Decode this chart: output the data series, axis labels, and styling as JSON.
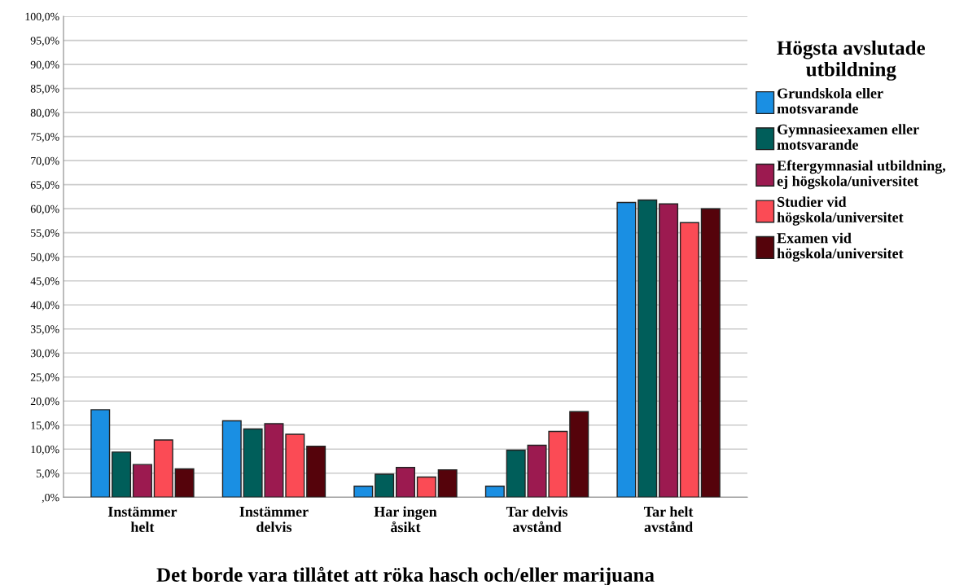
{
  "chart_data": {
    "type": "bar",
    "xlabel": "Det borde vara tillåtet att röka hasch och/eller marijuana",
    "legend_title": "Högsta avslutade\nutbildning",
    "categories": [
      "Instämmer\nhelt",
      "Instämmer\ndelvis",
      "Har ingen\nåsikt",
      "Tar delvis\navstånd",
      "Tar helt\navstånd"
    ],
    "series": [
      {
        "name": "Grundskola eller\nmotsvarande",
        "color": "#1a8fe3",
        "values": [
          18.2,
          15.9,
          2.3,
          2.3,
          61.3
        ]
      },
      {
        "name": "Gymnasieexamen eller\nmotsvarande",
        "color": "#005e5a",
        "values": [
          9.4,
          14.2,
          4.8,
          9.8,
          61.8
        ]
      },
      {
        "name": "Eftergymnasial utbildning,\nej högskola/universitet",
        "color": "#9c1a50",
        "values": [
          6.8,
          15.3,
          6.2,
          10.8,
          61.0
        ]
      },
      {
        "name": "Studier vid\nhögskola/universitet",
        "color": "#fb4b55",
        "values": [
          11.9,
          13.1,
          4.2,
          13.7,
          57.1
        ]
      },
      {
        "name": "Examen vid\nhögskola/universitet",
        "color": "#55030b",
        "values": [
          5.9,
          10.6,
          5.7,
          17.8,
          60.0
        ]
      }
    ],
    "ylim": [
      0,
      100
    ],
    "yticks": [
      {
        "value": 0,
        "label": ",0%"
      },
      {
        "value": 5,
        "label": "5,0%"
      },
      {
        "value": 10,
        "label": "10,0%"
      },
      {
        "value": 15,
        "label": "15,0%"
      },
      {
        "value": 20,
        "label": "20,0%"
      },
      {
        "value": 25,
        "label": "25,0%"
      },
      {
        "value": 30,
        "label": "30,0%"
      },
      {
        "value": 35,
        "label": "35,0%"
      },
      {
        "value": 40,
        "label": "40,0%"
      },
      {
        "value": 45,
        "label": "45,0%"
      },
      {
        "value": 50,
        "label": "50,0%"
      },
      {
        "value": 55,
        "label": "55,0%"
      },
      {
        "value": 60,
        "label": "60,0%"
      },
      {
        "value": 65,
        "label": "65,0%"
      },
      {
        "value": 70,
        "label": "70,0%"
      },
      {
        "value": 75,
        "label": "75,0%"
      },
      {
        "value": 80,
        "label": "80,0%"
      },
      {
        "value": 85,
        "label": "85,0%"
      },
      {
        "value": 90,
        "label": "90,0%"
      },
      {
        "value": 95,
        "label": "95,0%"
      },
      {
        "value": 100,
        "label": "100,0%"
      }
    ],
    "grid": "y",
    "legend": "right"
  }
}
